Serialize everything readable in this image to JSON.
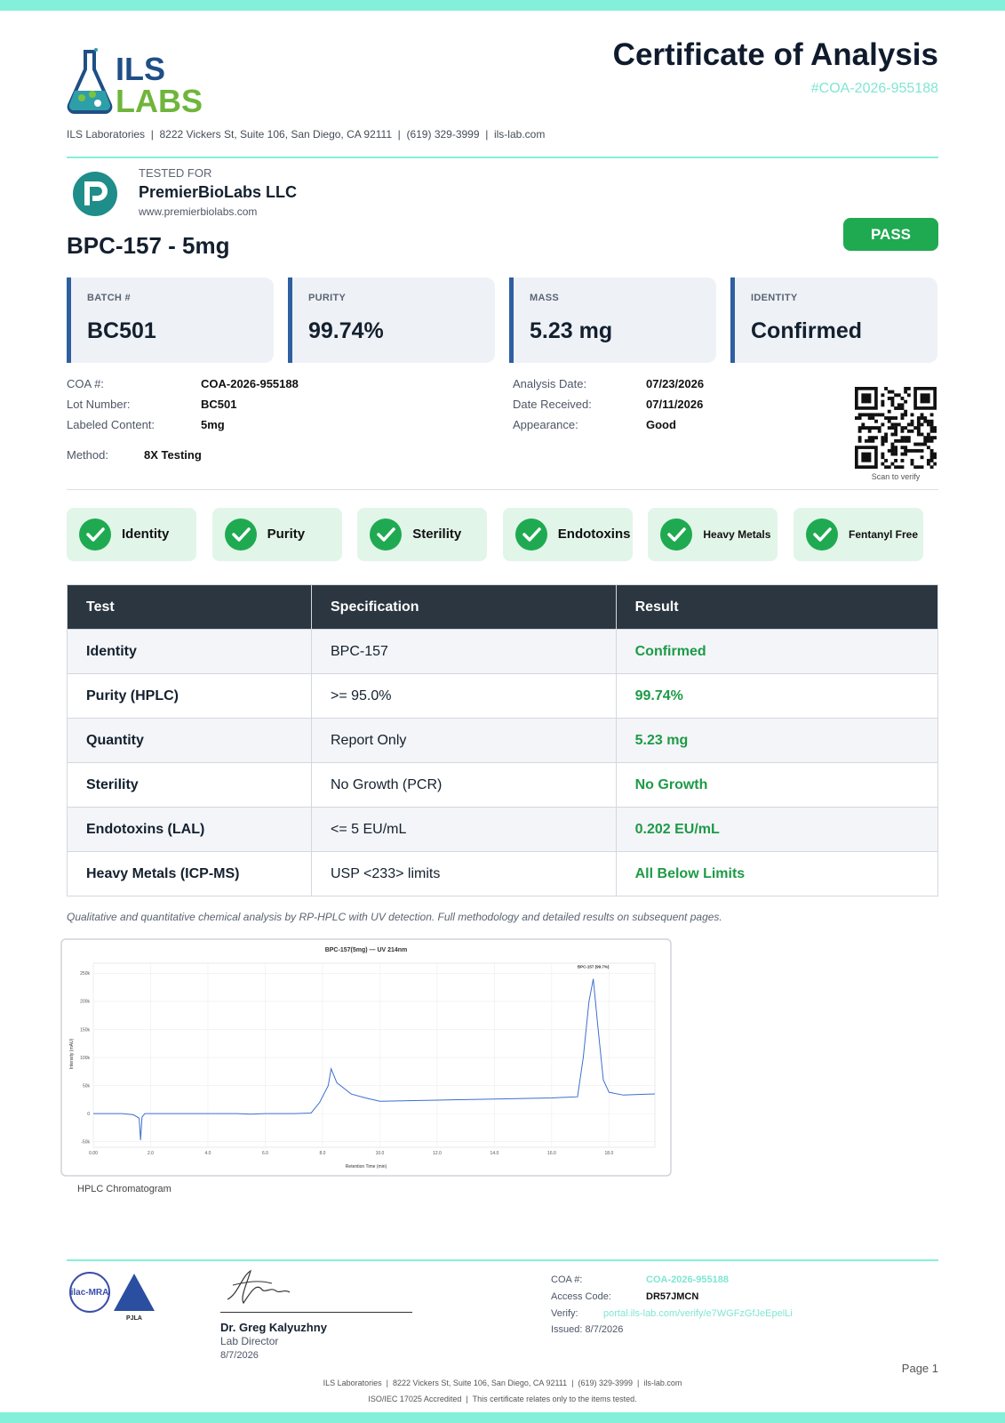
{
  "header": {
    "logo_top": "ILS",
    "logo_bottom": "LABS",
    "title": "Certificate of Analysis",
    "coa_id": "#COA-2026-955188",
    "address": "ILS Laboratories  |  8222 Vickers St, Suite 106, San Diego, CA 92111  |  (619) 329-3999  |  ils-lab.com"
  },
  "client": {
    "label": "TESTED FOR",
    "name": "PremierBioLabs LLC",
    "website": "www.premierbiolabs.com"
  },
  "product": "BPC-157 - 5mg",
  "status": "PASS",
  "summary": [
    {
      "label": "BATCH #",
      "value": "BC501"
    },
    {
      "label": "PURITY",
      "value": "99.74%"
    },
    {
      "label": "MASS",
      "value": "5.23 mg"
    },
    {
      "label": "IDENTITY",
      "value": "Confirmed"
    }
  ],
  "details": {
    "left": [
      {
        "label": "COA #:",
        "value": "COA-2026-955188"
      },
      {
        "label": "Lot Number:",
        "value": "BC501"
      },
      {
        "label": "Labeled Content:",
        "value": "5mg"
      }
    ],
    "right": [
      {
        "label": "Analysis Date:",
        "value": "07/23/2026"
      },
      {
        "label": "Date Received:",
        "value": "07/11/2026"
      },
      {
        "label": "Appearance:",
        "value": "Good"
      }
    ],
    "method": {
      "label": "Method:",
      "value": "8X Testing"
    },
    "qr_caption": "Scan to verify"
  },
  "badges": [
    "Identity",
    "Purity",
    "Sterility",
    "Endotoxins",
    "Heavy Metals",
    "Fentanyl Free"
  ],
  "table": {
    "headers": [
      "Test",
      "Specification",
      "Result"
    ],
    "rows": [
      [
        "Identity",
        "BPC-157",
        "Confirmed"
      ],
      [
        "Purity (HPLC)",
        ">= 95.0%",
        "99.74%"
      ],
      [
        "Quantity",
        "Report Only",
        "5.23 mg"
      ],
      [
        "Sterility",
        "No Growth (PCR)",
        "No Growth"
      ],
      [
        "Endotoxins (LAL)",
        "<= 5 EU/mL",
        "0.202 EU/mL"
      ],
      [
        "Heavy Metals (ICP-MS)",
        "USP <233> limits",
        "All Below Limits"
      ]
    ]
  },
  "note": "Qualitative and quantitative chemical analysis by RP-HPLC with UV detection. Full methodology and detailed results on subsequent pages.",
  "chart_data": {
    "type": "line",
    "title": "BPC-157(5mg) — UV 214nm",
    "x_label": "Retention Time (min)",
    "y_label": "Intensity (mAU)",
    "annotation": "BPC-157 (99.7%)",
    "color": "#3b6fd0",
    "grid": true,
    "x": [
      0,
      0.5,
      1.0,
      1.4,
      1.6,
      1.65,
      1.7,
      1.8,
      2.0,
      3.0,
      4.0,
      5.0,
      5.5,
      6.0,
      7.0,
      7.6,
      7.9,
      8.2,
      8.3,
      8.5,
      9.0,
      9.5,
      10.0,
      11.0,
      12.0,
      13.0,
      14.0,
      15.0,
      16.0,
      16.9,
      17.1,
      17.3,
      17.45,
      17.6,
      17.8,
      18.0,
      18.5,
      19.0,
      19.6
    ],
    "values": [
      0,
      0,
      0,
      -2000,
      -8000,
      -47000,
      -6000,
      0,
      0,
      0,
      0,
      0,
      -1000,
      0,
      0,
      1000,
      20000,
      50000,
      80000,
      55000,
      35000,
      28000,
      22000,
      23000,
      24000,
      25000,
      26000,
      27000,
      28000,
      30000,
      100000,
      200000,
      240000,
      160000,
      60000,
      38000,
      33000,
      34000,
      35000
    ],
    "xlim": [
      0,
      19.6
    ],
    "ylim": [
      -60000,
      268000
    ],
    "xticks": [
      {
        "value": 0,
        "label": "0.00"
      },
      {
        "value": 2,
        "label": "2.0"
      },
      {
        "value": 4,
        "label": "4.0"
      },
      {
        "value": 6,
        "label": "6.0"
      },
      {
        "value": 8,
        "label": "8.0"
      },
      {
        "value": 10,
        "label": "10.0"
      },
      {
        "value": 12,
        "label": "12.0"
      },
      {
        "value": 14,
        "label": "14.0"
      },
      {
        "value": 16,
        "label": "16.0"
      },
      {
        "value": 18,
        "label": "18.0"
      }
    ],
    "yticks": [
      {
        "value": -50000,
        "label": "-50k"
      },
      0,
      {
        "value": 50000,
        "label": "50k"
      },
      {
        "value": 100000,
        "label": "100k"
      },
      {
        "value": 150000,
        "label": "150k"
      },
      {
        "value": 200000,
        "label": "200k"
      },
      {
        "value": 250000,
        "label": "250k"
      }
    ]
  },
  "chart_caption": "HPLC Chromatogram",
  "signoff": {
    "name": "Dr. Greg Kalyuzhny",
    "role": "Lab Director",
    "date": "8/7/2026"
  },
  "accreditations": [
    "ilac-MRA",
    "PJLA"
  ],
  "verification": {
    "rows": [
      {
        "label": "COA #:",
        "value": "COA-2026-955188"
      },
      {
        "label": "Access Code:",
        "value": "DR57JMCN"
      },
      {
        "label": "Verify:",
        "value": "portal.ils-lab.com/verify/e7WGFzGfJeEpelLi"
      }
    ],
    "issued": "Issued: 8/7/2026"
  },
  "page": "Page 1",
  "footer": [
    "ILS Laboratories  |  8222 Vickers St, Suite 106, San Diego, CA 92111  |  (619) 329-3999  |  ils-lab.com",
    "ISO/IEC 17025 Accredited  |  This certificate relates only to the items tested."
  ]
}
